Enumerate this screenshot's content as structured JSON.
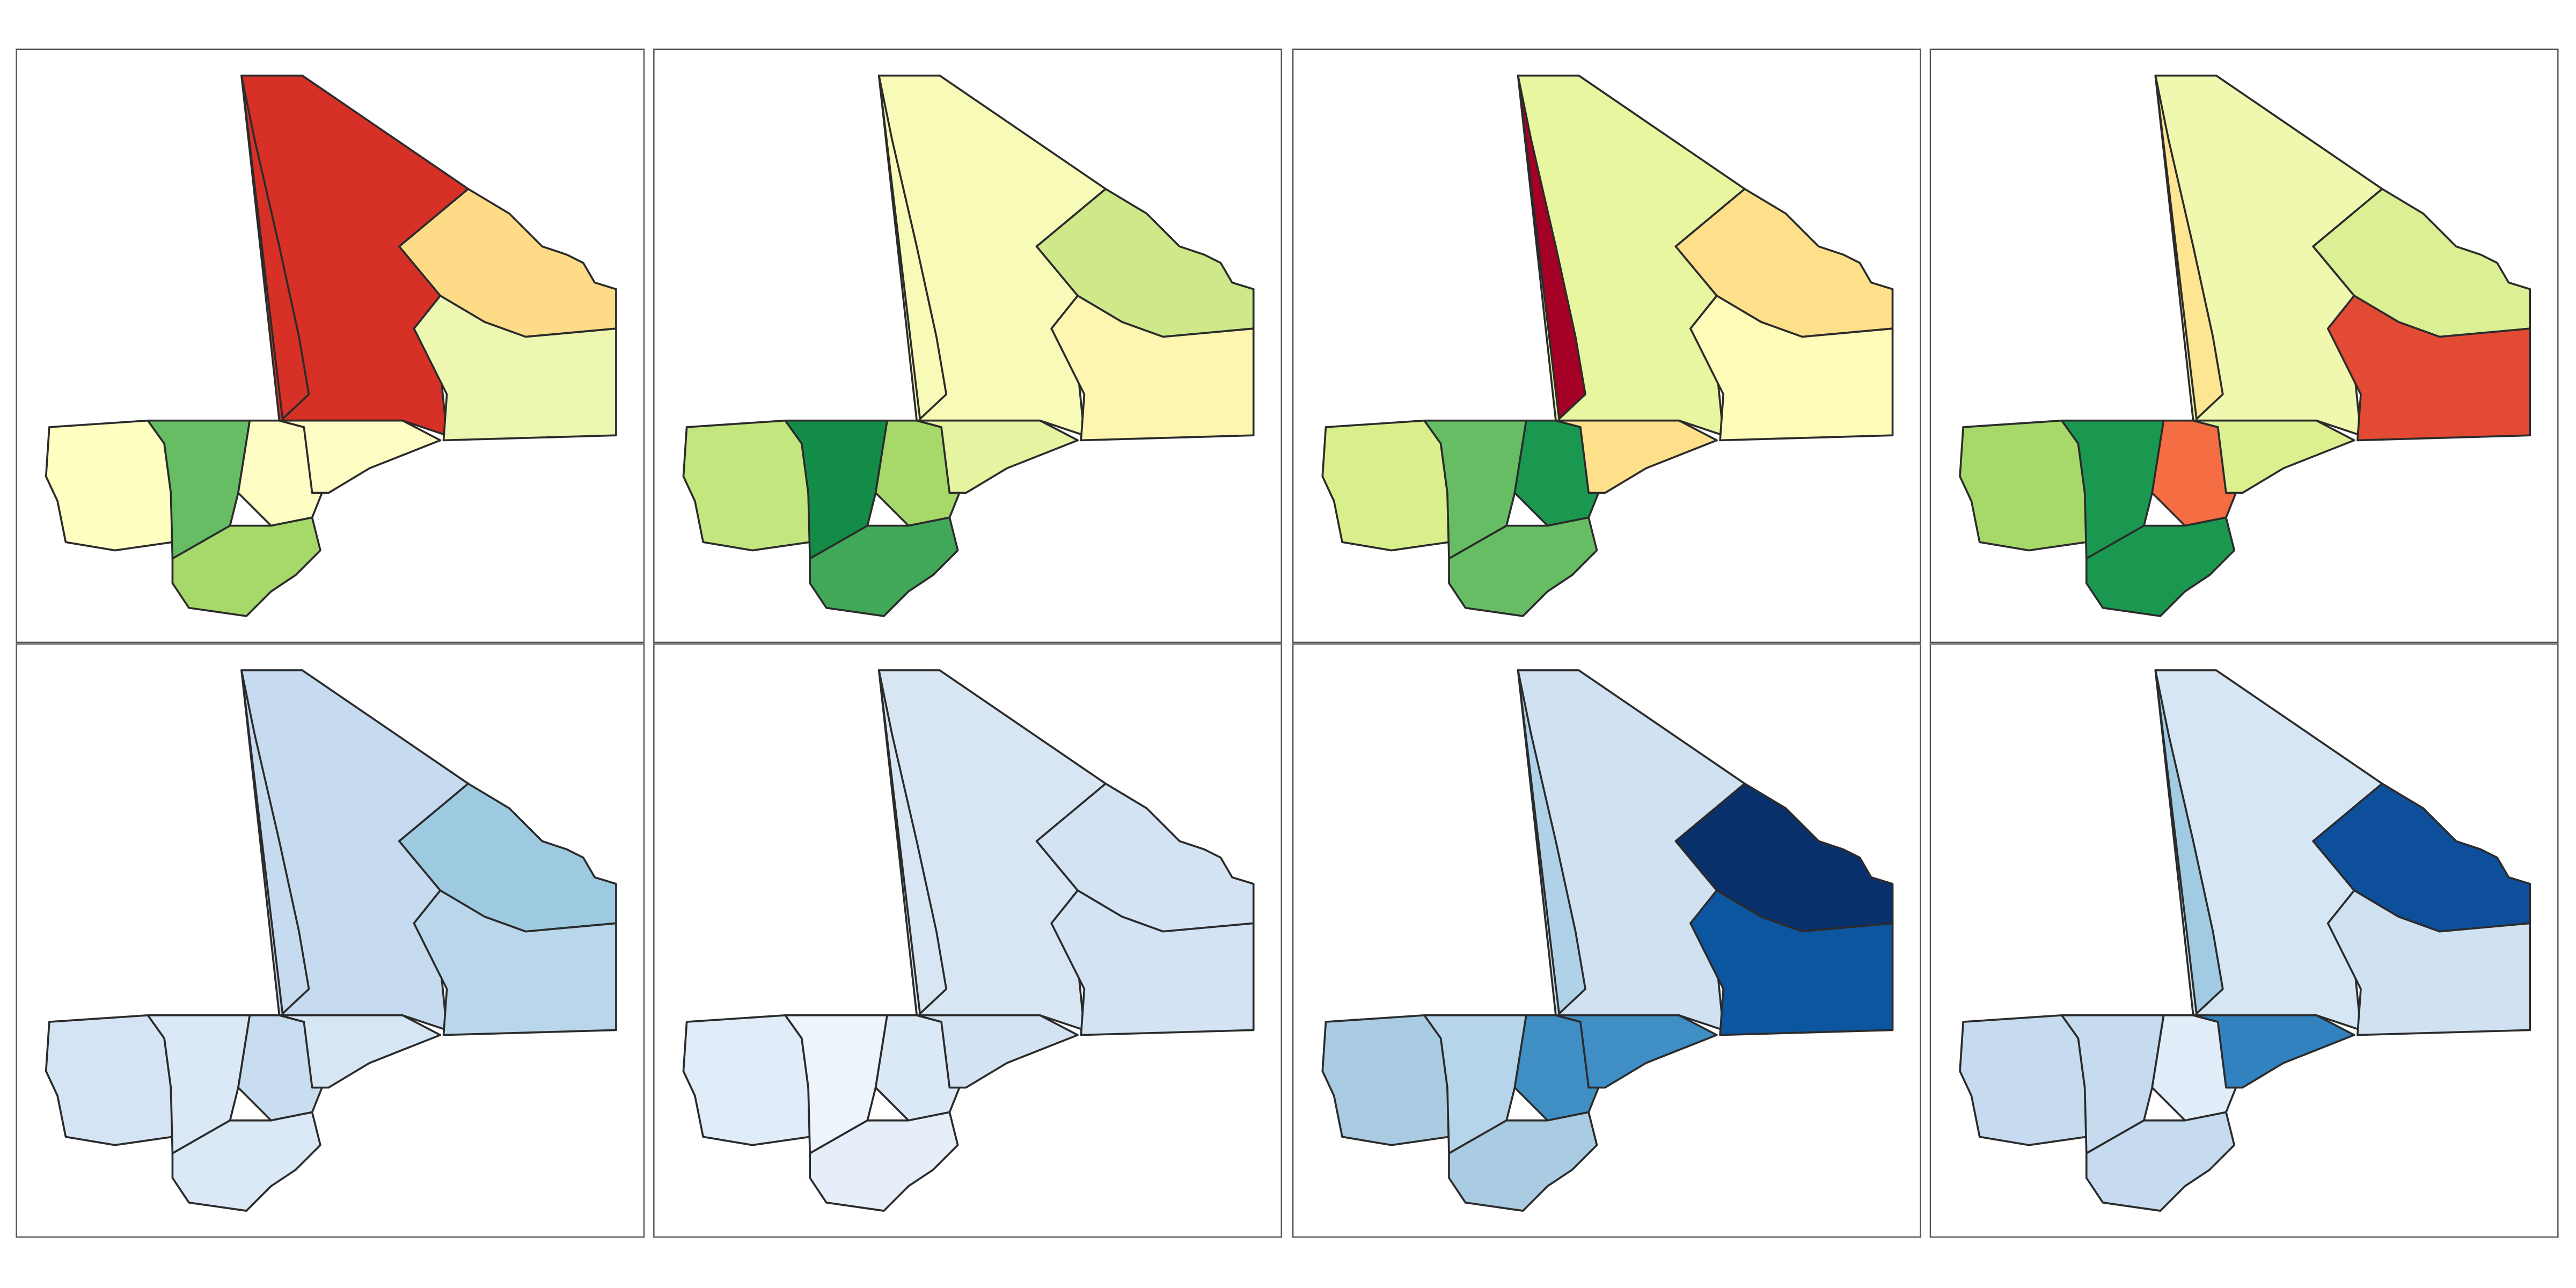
{
  "maps": [
    {
      "colors": [
        "#d73027",
        "#d73027",
        "#fedb87",
        "#edf7b1",
        "#ffffc2",
        "#66bd63",
        "#fefec4",
        "#fefec4",
        "#a6d96a"
      ]
    },
    {
      "colors": [
        "#f8fbb8",
        "#f8fbb8",
        "#cfe88a",
        "#fef6b0",
        "#c4e67f",
        "#138c47",
        "#a6d96a",
        "#e5f4a0",
        "#41a85a"
      ]
    },
    {
      "colors": [
        "#e8f6a0",
        "#a50026",
        "#fee08b",
        "#fefcb8",
        "#d9ef8b",
        "#66bd63",
        "#1a9850",
        "#fee08b",
        "#66bd63"
      ]
    },
    {
      "colors": [
        "#f0f8b0",
        "#fee591",
        "#dbef95",
        "#e34a33",
        "#a6d96a",
        "#1a9850",
        "#f46d43",
        "#dcf08f",
        "#1a9850"
      ]
    },
    {
      "colors": [
        "#c6dbef",
        "#c6dbef",
        "#9ecae1",
        "#b9d6ea",
        "#d4e4f4",
        "#dbe9f6",
        "#c9ddf0",
        "#d7e6f5",
        "#dbe9f6"
      ]
    },
    {
      "colors": [
        "#d8e6f4",
        "#d8e6f4",
        "#d3e3f3",
        "#d3e3f3",
        "#e0ecf8",
        "#eef4fb",
        "#dbe9f6",
        "#d3e3f3",
        "#e6eff9"
      ]
    },
    {
      "colors": [
        "#d0e1f2",
        "#b0d2e8",
        "#08306b",
        "#0c56a0",
        "#a9cce3",
        "#b6d4ea",
        "#3f8fc5",
        "#3f8fc5",
        "#a9cce3"
      ]
    },
    {
      "colors": [
        "#d6e6f4",
        "#a1cbe2",
        "#0d4f9a",
        "#d0e1f2",
        "#c6dbef",
        "#c6dbef",
        "#e1edf8",
        "#3282c0",
        "#c6dbef"
      ]
    }
  ]
}
